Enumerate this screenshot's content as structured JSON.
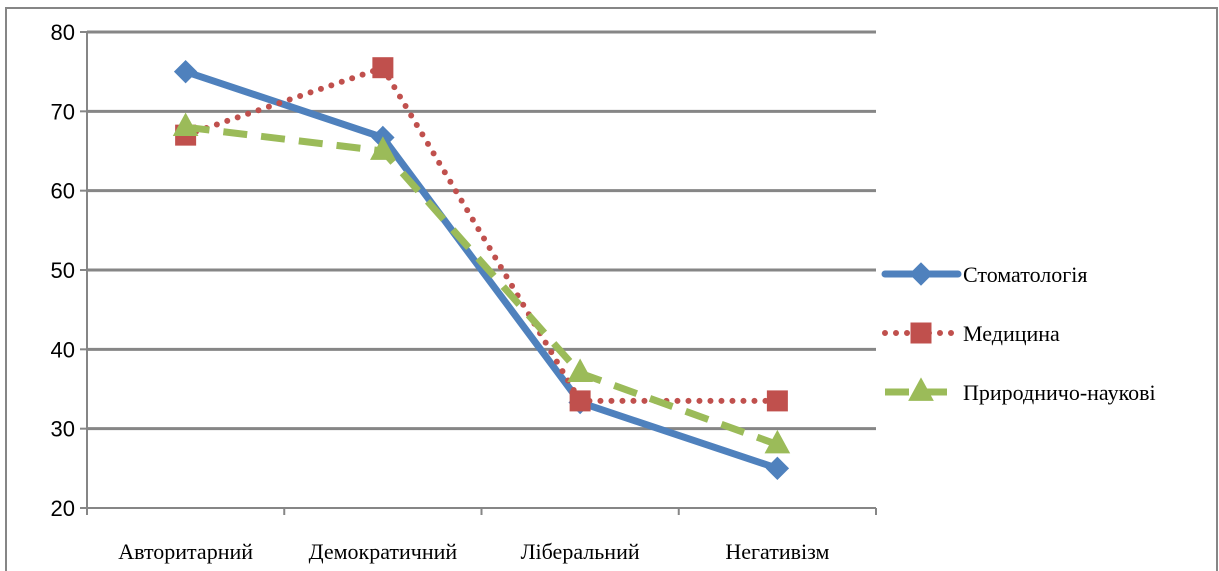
{
  "chart_data": {
    "type": "line",
    "categories": [
      "Авторитарний",
      "Демократичний",
      "Ліберальний",
      "Негативізм"
    ],
    "ylim": [
      20,
      80
    ],
    "yticks": [
      20,
      30,
      40,
      50,
      60,
      70,
      80
    ],
    "grid": true,
    "legend_position": "right",
    "series": [
      {
        "name": "Стоматологія",
        "values": [
          75,
          66.7,
          33.3,
          25
        ],
        "color": "#4f81bd",
        "line_style": "solid",
        "marker": "diamond"
      },
      {
        "name": "Медицина",
        "values": [
          67,
          75.5,
          33.5,
          33.5
        ],
        "color": "#c0504d",
        "line_style": "dotted",
        "marker": "square"
      },
      {
        "name": "Природничо-наукові",
        "values": [
          68,
          65,
          37,
          28
        ],
        "color": "#9bbb59",
        "line_style": "dashed",
        "marker": "triangle"
      }
    ]
  }
}
